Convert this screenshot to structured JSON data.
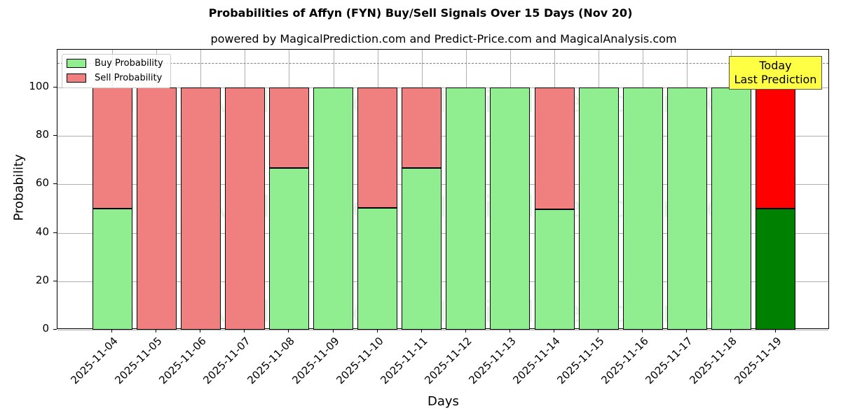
{
  "title": "Probabilities of Affyn (FYN) Buy/Sell Signals Over 15 Days (Nov 20)",
  "subtitle": "powered by MagicalPrediction.com and Predict-Price.com and MagicalAnalysis.com",
  "legend": {
    "buy": "Buy Probability",
    "sell": "Sell Probability"
  },
  "annotation": {
    "line1": "Today",
    "line2": "Last Prediction"
  },
  "watermarks": [
    "MagicalAnalysis.com",
    "MagicalPrediction.com"
  ],
  "colors": {
    "buy": "#90ee90",
    "sell": "#f08080",
    "buy_today": "#008000",
    "sell_today": "#ff0000",
    "annotation_bg": "#ffff44"
  },
  "chart_data": {
    "type": "bar",
    "stacked": true,
    "title": "Probabilities of Affyn (FYN) Buy/Sell Signals Over 15 Days (Nov 20)",
    "subtitle": "powered by MagicalPrediction.com and Predict-Price.com and MagicalAnalysis.com",
    "xlabel": "Days",
    "ylabel": "Probability",
    "ylim": [
      0,
      115
    ],
    "yticks": [
      0,
      20,
      40,
      60,
      80,
      100
    ],
    "grid": true,
    "legend_position": "upper left",
    "reference_line": {
      "y": 110,
      "style": "dashed"
    },
    "categories": [
      "2025-11-04",
      "2025-11-05",
      "2025-11-06",
      "2025-11-07",
      "2025-11-08",
      "2025-11-09",
      "2025-11-10",
      "2025-11-11",
      "2025-11-12",
      "2025-11-13",
      "2025-11-14",
      "2025-11-15",
      "2025-11-16",
      "2025-11-17",
      "2025-11-18",
      "2025-11-19"
    ],
    "series": [
      {
        "name": "Buy Probability",
        "values": [
          50,
          0,
          0,
          0,
          66.7,
          100,
          50.3,
          66.7,
          100,
          100,
          49.7,
          100,
          100,
          100,
          100,
          50
        ]
      },
      {
        "name": "Sell Probability",
        "values": [
          50,
          100,
          100,
          100,
          33.3,
          0,
          49.7,
          33.3,
          0,
          0,
          50.3,
          0,
          0,
          0,
          0,
          50
        ]
      }
    ],
    "highlight": {
      "category": "2025-11-19",
      "label": "Today\nLast Prediction"
    }
  }
}
